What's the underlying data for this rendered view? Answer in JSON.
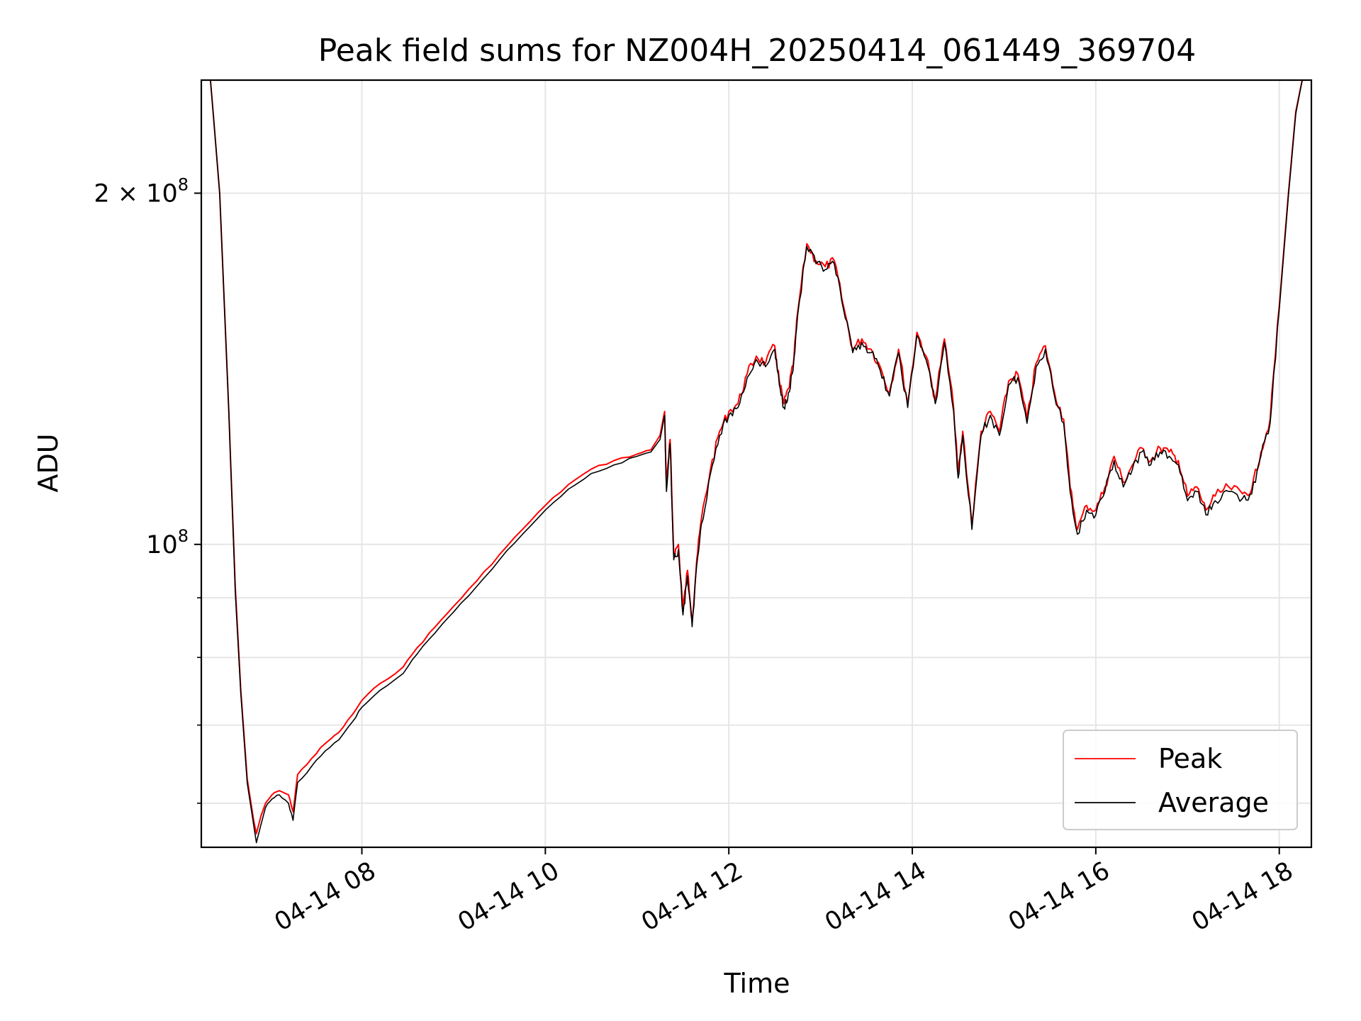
{
  "chart_data": {
    "type": "line",
    "title": "Peak field sums for NZ004H_20250414_061449_369704",
    "xlabel": "Time",
    "ylabel": "ADU",
    "x_range_hours": [
      6.25,
      18.35
    ],
    "ylim": [
      55000000,
      250000000
    ],
    "y_scale": "log",
    "grid": true,
    "legend_position": "lower-right",
    "x_ticks": [
      {
        "hour": 8,
        "label": "04-14 08"
      },
      {
        "hour": 10,
        "label": "04-14 10"
      },
      {
        "hour": 12,
        "label": "04-14 12"
      },
      {
        "hour": 14,
        "label": "04-14 14"
      },
      {
        "hour": 16,
        "label": "04-14 16"
      },
      {
        "hour": 18,
        "label": "04-14 18"
      }
    ],
    "y_ticks": [
      {
        "value": 100000000,
        "base": "10",
        "exp": "8",
        "prefix": ""
      },
      {
        "value": 200000000,
        "base": "10",
        "exp": "8",
        "prefix": "2 × "
      }
    ],
    "y_minor_ticks": [
      60000000,
      70000000,
      80000000,
      90000000
    ],
    "series": [
      {
        "name": "Peak",
        "color": "#ff0000",
        "points": [
          [
            6.35,
            250000000
          ],
          [
            6.45,
            200000000
          ],
          [
            6.55,
            130000000
          ],
          [
            6.62,
            92000000
          ],
          [
            6.68,
            75000000
          ],
          [
            6.75,
            63000000
          ],
          [
            6.82,
            58000000
          ],
          [
            6.85,
            56500000
          ],
          [
            6.9,
            58500000
          ],
          [
            6.95,
            60000000
          ],
          [
            7.02,
            61000000
          ],
          [
            7.1,
            61500000
          ],
          [
            7.2,
            61000000
          ],
          [
            7.25,
            59000000
          ],
          [
            7.3,
            63500000
          ],
          [
            7.45,
            65500000
          ],
          [
            7.6,
            67500000
          ],
          [
            7.75,
            69000000
          ],
          [
            7.9,
            71500000
          ],
          [
            8.0,
            73500000
          ],
          [
            8.2,
            76000000
          ],
          [
            8.45,
            78500000
          ],
          [
            8.6,
            81500000
          ],
          [
            8.8,
            85000000
          ],
          [
            9.0,
            88500000
          ],
          [
            9.25,
            93000000
          ],
          [
            9.5,
            98000000
          ],
          [
            9.75,
            103000000
          ],
          [
            10.0,
            108000000
          ],
          [
            10.25,
            112500000
          ],
          [
            10.5,
            116000000
          ],
          [
            10.75,
            118000000
          ],
          [
            11.0,
            119500000
          ],
          [
            11.15,
            120500000
          ],
          [
            11.25,
            124000000
          ],
          [
            11.3,
            130000000
          ],
          [
            11.32,
            112000000
          ],
          [
            11.36,
            123000000
          ],
          [
            11.4,
            98000000
          ],
          [
            11.45,
            100000000
          ],
          [
            11.5,
            88000000
          ],
          [
            11.55,
            95000000
          ],
          [
            11.6,
            86000000
          ],
          [
            11.65,
            97000000
          ],
          [
            11.7,
            105000000
          ],
          [
            11.8,
            116000000
          ],
          [
            11.9,
            125000000
          ],
          [
            12.0,
            130000000
          ],
          [
            12.1,
            132000000
          ],
          [
            12.2,
            140000000
          ],
          [
            12.3,
            145000000
          ],
          [
            12.4,
            143000000
          ],
          [
            12.5,
            148000000
          ],
          [
            12.55,
            138000000
          ],
          [
            12.6,
            132000000
          ],
          [
            12.65,
            136000000
          ],
          [
            12.7,
            142000000
          ],
          [
            12.75,
            158000000
          ],
          [
            12.85,
            181000000
          ],
          [
            12.95,
            175000000
          ],
          [
            13.05,
            173000000
          ],
          [
            13.15,
            175000000
          ],
          [
            13.25,
            160000000
          ],
          [
            13.35,
            147000000
          ],
          [
            13.45,
            150000000
          ],
          [
            13.55,
            147000000
          ],
          [
            13.65,
            142000000
          ],
          [
            13.75,
            135000000
          ],
          [
            13.85,
            147000000
          ],
          [
            13.95,
            132000000
          ],
          [
            14.05,
            152000000
          ],
          [
            14.15,
            145000000
          ],
          [
            14.25,
            133000000
          ],
          [
            14.35,
            150000000
          ],
          [
            14.45,
            131000000
          ],
          [
            14.5,
            115000000
          ],
          [
            14.55,
            125000000
          ],
          [
            14.65,
            104000000
          ],
          [
            14.75,
            125000000
          ],
          [
            14.85,
            130000000
          ],
          [
            14.95,
            125000000
          ],
          [
            15.05,
            138000000
          ],
          [
            15.15,
            140000000
          ],
          [
            15.25,
            128000000
          ],
          [
            15.35,
            143000000
          ],
          [
            15.45,
            148000000
          ],
          [
            15.55,
            135000000
          ],
          [
            15.65,
            128000000
          ],
          [
            15.72,
            112000000
          ],
          [
            15.8,
            103000000
          ],
          [
            15.9,
            108000000
          ],
          [
            16.0,
            107000000
          ],
          [
            16.1,
            112000000
          ],
          [
            16.2,
            119000000
          ],
          [
            16.3,
            113000000
          ],
          [
            16.4,
            117000000
          ],
          [
            16.5,
            121000000
          ],
          [
            16.6,
            118000000
          ],
          [
            16.7,
            121000000
          ],
          [
            16.8,
            120000000
          ],
          [
            16.9,
            118000000
          ],
          [
            17.0,
            110000000
          ],
          [
            17.1,
            112000000
          ],
          [
            17.2,
            107000000
          ],
          [
            17.3,
            110000000
          ],
          [
            17.45,
            112000000
          ],
          [
            17.6,
            110500000
          ],
          [
            17.7,
            111500000
          ],
          [
            17.8,
            120000000
          ],
          [
            17.9,
            128000000
          ],
          [
            18.0,
            160000000
          ],
          [
            18.1,
            200000000
          ],
          [
            18.18,
            235000000
          ],
          [
            18.25,
            250000000
          ]
        ]
      },
      {
        "name": "Average",
        "color": "#000000",
        "points": [
          [
            6.35,
            250000000
          ],
          [
            6.45,
            200000000
          ],
          [
            6.55,
            130000000
          ],
          [
            6.62,
            91000000
          ],
          [
            6.68,
            74500000
          ],
          [
            6.75,
            62500000
          ],
          [
            6.82,
            57500000
          ],
          [
            6.85,
            55500000
          ],
          [
            6.9,
            57500000
          ],
          [
            6.95,
            59500000
          ],
          [
            7.02,
            60500000
          ],
          [
            7.1,
            61000000
          ],
          [
            7.2,
            60000000
          ],
          [
            7.25,
            58000000
          ],
          [
            7.3,
            62500000
          ],
          [
            7.45,
            64500000
          ],
          [
            7.6,
            66500000
          ],
          [
            7.75,
            68000000
          ],
          [
            7.9,
            70500000
          ],
          [
            8.0,
            72500000
          ],
          [
            8.2,
            75000000
          ],
          [
            8.45,
            77500000
          ],
          [
            8.6,
            80500000
          ],
          [
            8.8,
            84000000
          ],
          [
            9.0,
            87500000
          ],
          [
            9.25,
            92000000
          ],
          [
            9.5,
            97000000
          ],
          [
            9.75,
            102000000
          ],
          [
            10.0,
            107000000
          ],
          [
            10.25,
            111500000
          ],
          [
            10.5,
            115000000
          ],
          [
            10.75,
            117000000
          ],
          [
            11.0,
            119000000
          ],
          [
            11.15,
            120000000
          ],
          [
            11.25,
            123000000
          ],
          [
            11.3,
            129000000
          ],
          [
            11.32,
            111000000
          ],
          [
            11.36,
            122000000
          ],
          [
            11.4,
            97000000
          ],
          [
            11.45,
            99000000
          ],
          [
            11.5,
            87000000
          ],
          [
            11.55,
            94000000
          ],
          [
            11.6,
            85000000
          ],
          [
            11.65,
            96000000
          ],
          [
            11.7,
            104000000
          ],
          [
            11.8,
            115000000
          ],
          [
            11.9,
            124000000
          ],
          [
            12.0,
            129000000
          ],
          [
            12.1,
            131000000
          ],
          [
            12.2,
            139000000
          ],
          [
            12.3,
            144000000
          ],
          [
            12.4,
            142000000
          ],
          [
            12.5,
            147000000
          ],
          [
            12.55,
            137000000
          ],
          [
            12.6,
            131000000
          ],
          [
            12.65,
            135000000
          ],
          [
            12.7,
            141000000
          ],
          [
            12.75,
            157000000
          ],
          [
            12.85,
            180000000
          ],
          [
            12.95,
            174000000
          ],
          [
            13.05,
            172000000
          ],
          [
            13.15,
            174000000
          ],
          [
            13.25,
            159000000
          ],
          [
            13.35,
            146000000
          ],
          [
            13.45,
            149000000
          ],
          [
            13.55,
            146000000
          ],
          [
            13.65,
            141000000
          ],
          [
            13.75,
            134000000
          ],
          [
            13.85,
            146000000
          ],
          [
            13.95,
            131000000
          ],
          [
            14.05,
            151000000
          ],
          [
            14.15,
            144000000
          ],
          [
            14.25,
            132000000
          ],
          [
            14.35,
            149000000
          ],
          [
            14.45,
            130000000
          ],
          [
            14.5,
            114000000
          ],
          [
            14.55,
            124000000
          ],
          [
            14.65,
            103000000
          ],
          [
            14.75,
            124000000
          ],
          [
            14.85,
            129000000
          ],
          [
            14.95,
            124000000
          ],
          [
            15.05,
            137000000
          ],
          [
            15.15,
            139000000
          ],
          [
            15.25,
            127000000
          ],
          [
            15.35,
            142000000
          ],
          [
            15.45,
            147000000
          ],
          [
            15.55,
            134000000
          ],
          [
            15.65,
            127000000
          ],
          [
            15.72,
            111000000
          ],
          [
            15.8,
            102000000
          ],
          [
            15.9,
            107000000
          ],
          [
            16.0,
            106000000
          ],
          [
            16.1,
            111000000
          ],
          [
            16.2,
            118000000
          ],
          [
            16.3,
            112000000
          ],
          [
            16.4,
            116000000
          ],
          [
            16.5,
            120000000
          ],
          [
            16.6,
            117000000
          ],
          [
            16.7,
            120000000
          ],
          [
            16.8,
            119000000
          ],
          [
            16.9,
            117000000
          ],
          [
            17.0,
            109000000
          ],
          [
            17.1,
            111000000
          ],
          [
            17.2,
            106000000
          ],
          [
            17.3,
            109000000
          ],
          [
            17.45,
            111000000
          ],
          [
            17.6,
            109500000
          ],
          [
            17.7,
            110500000
          ],
          [
            17.8,
            119000000
          ],
          [
            17.9,
            127000000
          ],
          [
            18.0,
            159000000
          ],
          [
            18.1,
            199000000
          ],
          [
            18.18,
            234000000
          ],
          [
            18.25,
            250000000
          ]
        ]
      }
    ]
  }
}
